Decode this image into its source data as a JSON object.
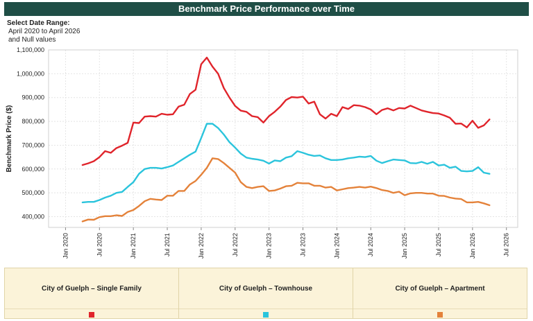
{
  "header": {
    "title": "Benchmark Price Performance over Time"
  },
  "filter": {
    "label": "Select Date Range:",
    "line1": "April 2020 to April 2026",
    "line2": "and Null values"
  },
  "chart_data": {
    "type": "line",
    "title": "Benchmark Price Performance over Time",
    "ylabel": "Benchmark Price ($)",
    "xlabel": "",
    "ylim": [
      355000,
      1100000
    ],
    "y_ticks": [
      400000,
      500000,
      600000,
      700000,
      800000,
      900000,
      1000000,
      1100000
    ],
    "y_tick_labels": [
      "400,000",
      "500,000",
      "600,000",
      "700,000",
      "800,000",
      "900,000",
      "1,000,000",
      "1,100,000"
    ],
    "x_ticks": [
      "2020-01",
      "2020-07",
      "2021-01",
      "2021-07",
      "2022-01",
      "2022-07",
      "2023-01",
      "2023-07",
      "2024-01",
      "2024-07",
      "2025-01",
      "2025-07",
      "2026-01",
      "2026-07"
    ],
    "x_tick_labels": [
      "Jan 2020",
      "Jul 2020",
      "Jan 2021",
      "Jul 2021",
      "Jan 2022",
      "Jul 2022",
      "Jan 2023",
      "Jul 2023",
      "Jan 2024",
      "Jul 2024",
      "Jan 2025",
      "Jul 2025",
      "Jan 2026",
      "Jul 2026"
    ],
    "grid": true,
    "legend_position": "bottom",
    "x": [
      "2020-04",
      "2020-05",
      "2020-06",
      "2020-07",
      "2020-08",
      "2020-09",
      "2020-10",
      "2020-11",
      "2020-12",
      "2021-01",
      "2021-02",
      "2021-03",
      "2021-04",
      "2021-05",
      "2021-06",
      "2021-07",
      "2021-08",
      "2021-09",
      "2021-10",
      "2021-11",
      "2021-12",
      "2022-01",
      "2022-02",
      "2022-03",
      "2022-04",
      "2022-05",
      "2022-06",
      "2022-07",
      "2022-08",
      "2022-09",
      "2022-10",
      "2022-11",
      "2022-12",
      "2023-01",
      "2023-02",
      "2023-03",
      "2023-04",
      "2023-05",
      "2023-06",
      "2023-07",
      "2023-08",
      "2023-09",
      "2023-10",
      "2023-11",
      "2023-12",
      "2024-01",
      "2024-02",
      "2024-03",
      "2024-04",
      "2024-05",
      "2024-06",
      "2024-07",
      "2024-08",
      "2024-09",
      "2024-10",
      "2024-11",
      "2024-12",
      "2025-01",
      "2025-02",
      "2025-03",
      "2025-04",
      "2025-05",
      "2025-06",
      "2025-07",
      "2025-08",
      "2025-09",
      "2025-10",
      "2025-11",
      "2025-12",
      "2026-01",
      "2026-02",
      "2026-03",
      "2026-04"
    ],
    "series": [
      {
        "name": "City of Guelph – Single Family",
        "color": "#e0242b",
        "values": [
          617000,
          624000,
          633000,
          650000,
          675000,
          668000,
          688000,
          698000,
          710000,
          795000,
          793000,
          820000,
          822000,
          820000,
          832000,
          828000,
          830000,
          862000,
          870000,
          915000,
          933000,
          1040000,
          1068000,
          1030000,
          1000000,
          940000,
          900000,
          865000,
          845000,
          840000,
          822000,
          818000,
          795000,
          822000,
          840000,
          862000,
          890000,
          902000,
          900000,
          904000,
          875000,
          883000,
          830000,
          812000,
          832000,
          822000,
          860000,
          852000,
          868000,
          866000,
          860000,
          850000,
          830000,
          848000,
          855000,
          846000,
          856000,
          854000,
          866000,
          856000,
          846000,
          840000,
          835000,
          833000,
          825000,
          815000,
          790000,
          791000,
          775000,
          803000,
          773000,
          783000,
          808000
        ]
      },
      {
        "name": "City of Guelph – Townhouse",
        "color": "#2bc4dc",
        "values": [
          460000,
          462000,
          462000,
          470000,
          480000,
          488000,
          500000,
          504000,
          525000,
          545000,
          580000,
          600000,
          605000,
          605000,
          602000,
          608000,
          615000,
          630000,
          645000,
          660000,
          673000,
          730000,
          790000,
          790000,
          772000,
          745000,
          713000,
          690000,
          665000,
          648000,
          643000,
          640000,
          635000,
          623000,
          636000,
          633000,
          648000,
          654000,
          675000,
          668000,
          660000,
          655000,
          657000,
          645000,
          638000,
          638000,
          640000,
          645000,
          648000,
          652000,
          650000,
          655000,
          635000,
          625000,
          633000,
          640000,
          638000,
          636000,
          625000,
          624000,
          630000,
          622000,
          630000,
          615000,
          618000,
          605000,
          610000,
          592000,
          590000,
          592000,
          608000,
          585000,
          580000
        ]
      },
      {
        "name": "City of Guelph – Apartment",
        "color": "#e4823a",
        "values": [
          380000,
          388000,
          387000,
          398000,
          402000,
          402000,
          406000,
          403000,
          420000,
          428000,
          445000,
          465000,
          475000,
          472000,
          470000,
          488000,
          488000,
          508000,
          508000,
          535000,
          550000,
          576000,
          605000,
          645000,
          642000,
          625000,
          605000,
          585000,
          545000,
          525000,
          520000,
          525000,
          528000,
          508000,
          510000,
          518000,
          528000,
          530000,
          542000,
          540000,
          540000,
          530000,
          530000,
          522000,
          525000,
          510000,
          515000,
          520000,
          522000,
          525000,
          522000,
          526000,
          520000,
          512000,
          508000,
          500000,
          505000,
          490000,
          498000,
          500000,
          500000,
          497000,
          497000,
          488000,
          487000,
          480000,
          476000,
          474000,
          460000,
          460000,
          462000,
          456000,
          448000
        ]
      }
    ]
  },
  "legend": {
    "items": [
      {
        "label": "City of Guelph – Single Family",
        "color": "#e0242b"
      },
      {
        "label": "City of Guelph – Townhouse",
        "color": "#2bc4dc"
      },
      {
        "label": "City of Guelph – Apartment",
        "color": "#e4823a"
      }
    ]
  }
}
